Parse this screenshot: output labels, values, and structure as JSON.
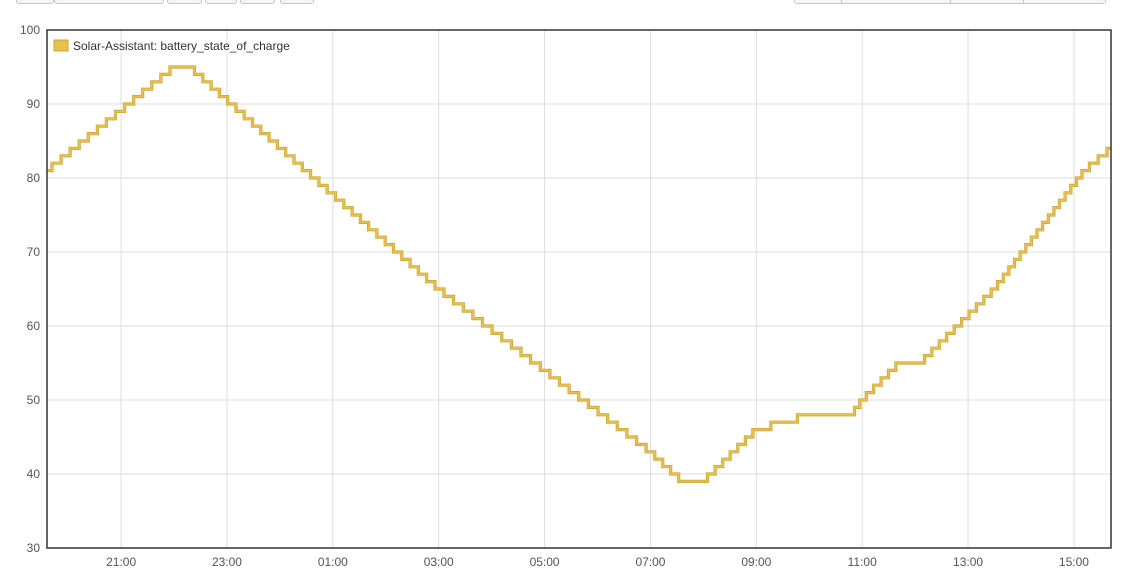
{
  "toolbar": {
    "left_buttons": [
      {
        "name": "toolbar-button-1"
      },
      {
        "name": "toolbar-button-2"
      },
      {
        "name": "toolbar-button-3"
      },
      {
        "name": "toolbar-button-4"
      },
      {
        "name": "toolbar-button-5"
      },
      {
        "name": "toolbar-button-6"
      }
    ],
    "right_buttons": [
      {
        "name": "range-button-1"
      },
      {
        "name": "range-button-2"
      },
      {
        "name": "range-button-3"
      },
      {
        "name": "range-button-4"
      }
    ]
  },
  "colors": {
    "series": "#e8c14a",
    "series_dark": "#c9a43a",
    "grid": "#dddddd",
    "frame": "#333333"
  },
  "chart_data": {
    "type": "line",
    "title": "",
    "xlabel": "",
    "ylabel": "",
    "grid": true,
    "legend_position": "top-left",
    "x_unit": "hours (ticks labelled as clock time)",
    "xlim": [
      19.6,
      39.7
    ],
    "ylim": [
      30,
      100
    ],
    "y_ticks": [
      30,
      40,
      50,
      60,
      70,
      80,
      90,
      100
    ],
    "x_ticks": [
      {
        "x": 21,
        "label": "21:00"
      },
      {
        "x": 23,
        "label": "23:00"
      },
      {
        "x": 25,
        "label": "01:00"
      },
      {
        "x": 27,
        "label": "03:00"
      },
      {
        "x": 29,
        "label": "05:00"
      },
      {
        "x": 31,
        "label": "07:00"
      },
      {
        "x": 33,
        "label": "09:00"
      },
      {
        "x": 35,
        "label": "11:00"
      },
      {
        "x": 37,
        "label": "13:00"
      },
      {
        "x": 39,
        "label": "15:00"
      }
    ],
    "series": [
      {
        "name": "Solar-Assistant: battery_state_of_charge",
        "step": true,
        "x": [
          19.6,
          22.0,
          22.3,
          27.0,
          31.0,
          31.6,
          32.0,
          33.0,
          34.0,
          34.8,
          35.0,
          35.7,
          36.1,
          37.5,
          39.2,
          39.7
        ],
        "y": [
          81,
          95,
          95,
          65,
          43,
          39,
          39,
          46,
          48,
          48,
          50,
          55,
          55,
          65,
          81,
          84
        ]
      }
    ]
  }
}
